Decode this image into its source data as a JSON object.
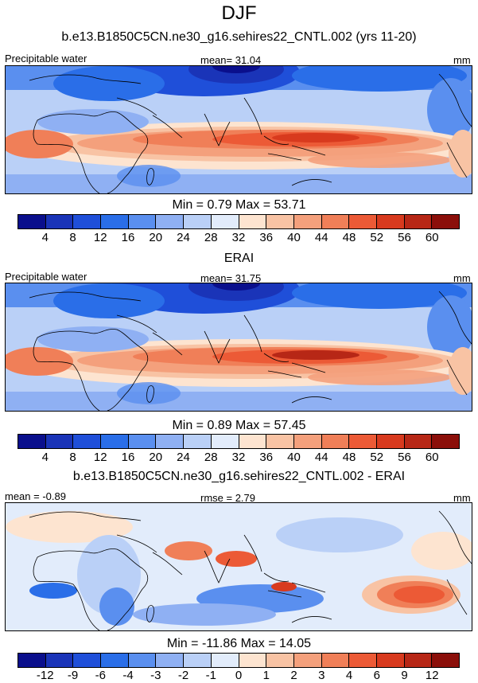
{
  "title": "DJF",
  "panels": [
    {
      "subtitle": "b.e13.B1850C5CN.ne30_g16.sehires22_CNTL.002 (yrs 11-20)",
      "left_label": "Precipitable water",
      "center_label": "mean=  31.04",
      "right_label": "mm",
      "stats": "Min =   0.79 Max =  53.71",
      "colorbar": {
        "colors": [
          "#0a0f8c",
          "#1a34b8",
          "#1f4fd9",
          "#2a6ee8",
          "#5a8fef",
          "#8fb0f3",
          "#bad0f7",
          "#e2ecfb",
          "#fde4d0",
          "#f8c3a4",
          "#f4a07c",
          "#f07f58",
          "#ec5a36",
          "#d83a1e",
          "#b72716",
          "#8b0f0a"
        ],
        "tick_labels": [
          "4",
          "8",
          "12",
          "16",
          "20",
          "24",
          "28",
          "32",
          "36",
          "40",
          "44",
          "48",
          "52",
          "56",
          "60"
        ]
      }
    },
    {
      "subtitle": "ERAI",
      "left_label": "Precipitable water",
      "center_label": "mean=  31.75",
      "right_label": "mm",
      "stats": "Min =   0.89 Max =  57.45",
      "colorbar": {
        "colors": [
          "#0a0f8c",
          "#1a34b8",
          "#1f4fd9",
          "#2a6ee8",
          "#5a8fef",
          "#8fb0f3",
          "#bad0f7",
          "#e2ecfb",
          "#fde4d0",
          "#f8c3a4",
          "#f4a07c",
          "#f07f58",
          "#ec5a36",
          "#d83a1e",
          "#b72716",
          "#8b0f0a"
        ],
        "tick_labels": [
          "4",
          "8",
          "12",
          "16",
          "20",
          "24",
          "28",
          "32",
          "36",
          "40",
          "44",
          "48",
          "52",
          "56",
          "60"
        ]
      }
    },
    {
      "subtitle": "b.e13.B1850C5CN.ne30_g16.sehires22_CNTL.002 - ERAI",
      "left_label": "mean =  -0.89",
      "center_label": "rmse =   2.79",
      "right_label": "mm",
      "stats": "Min = -11.86 Max =  14.05",
      "colorbar": {
        "colors": [
          "#0a0f8c",
          "#1a34b8",
          "#1f4fd9",
          "#2a6ee8",
          "#5a8fef",
          "#8fb0f3",
          "#bad0f7",
          "#e2ecfb",
          "#fde4d0",
          "#f8c3a4",
          "#f4a07c",
          "#f07f58",
          "#ec5a36",
          "#d83a1e",
          "#b72716",
          "#8b0f0a"
        ],
        "tick_labels": [
          "-12",
          "-9",
          "-6",
          "-4",
          "-3",
          "-2",
          "-1",
          "0",
          "1",
          "2",
          "3",
          "4",
          "6",
          "9",
          "12"
        ]
      }
    }
  ]
}
